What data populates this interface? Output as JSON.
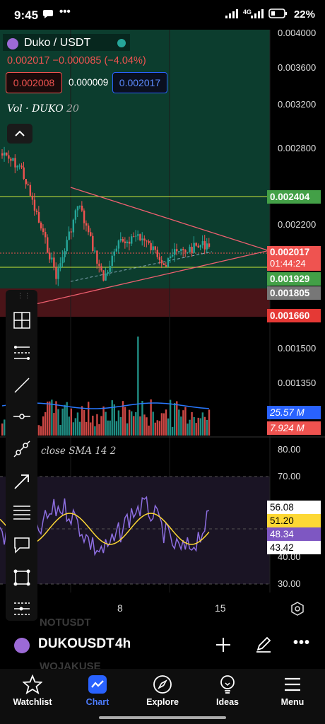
{
  "status_bar": {
    "time": "9:45",
    "network": "4G",
    "battery": "22%"
  },
  "header": {
    "pair": "Duko / USDT",
    "ohlc_line": "0.002017 −0.000085 (−4.04%)",
    "sell_price": "0.002008",
    "spread": "0.000009",
    "buy_price": "0.002017",
    "volume_label": "Vol · DUKO",
    "volume_length": "20"
  },
  "price_axis": [
    "0.004000",
    "0.003600",
    "0.003200",
    "0.002800",
    "0.002200",
    "0.001500",
    "0.001350"
  ],
  "price_tags": {
    "resistance": "0.002404",
    "last_price": "0.002017",
    "countdown": "01:44:24",
    "level_green": "0.001929",
    "level_gray": "0.001805",
    "support": "0.001660"
  },
  "volume_tags": {
    "vol_blue": "25.57 M",
    "vol_red": "7.924 M"
  },
  "rsi": {
    "label": "close SMA 14 2",
    "axis": [
      "80.00",
      "70.00",
      "40.00",
      "30.00"
    ],
    "tags": [
      "56.08",
      "51.20",
      "48.34",
      "43.42"
    ]
  },
  "time_axis": [
    "8",
    "15"
  ],
  "symbol_bar": {
    "symbol": "DUKOUSDT",
    "interval": "4h",
    "ghost_top": "NOTUSDT",
    "ghost_bottom": "WOJAKUSE"
  },
  "nav": [
    {
      "label": "Watchlist",
      "icon": "star-icon"
    },
    {
      "label": "Chart",
      "icon": "chart-icon"
    },
    {
      "label": "Explore",
      "icon": "compass-icon"
    },
    {
      "label": "Ideas",
      "icon": "lightbulb-icon"
    },
    {
      "label": "Menu",
      "icon": "hamburger-icon"
    }
  ],
  "colors": {
    "accent": "#2962ff",
    "up": "#26a69a",
    "down": "#ef5350",
    "rsi": "#7e57c2",
    "sma": "#fdd835"
  }
}
